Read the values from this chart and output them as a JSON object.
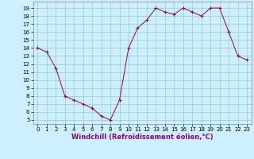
{
  "x": [
    0,
    1,
    2,
    3,
    4,
    5,
    6,
    7,
    8,
    9,
    10,
    11,
    12,
    13,
    14,
    15,
    16,
    17,
    18,
    19,
    20,
    21,
    22,
    23
  ],
  "y": [
    14,
    13.5,
    11.5,
    8,
    7.5,
    7,
    6.5,
    5.5,
    5,
    7.5,
    14,
    16.5,
    17.5,
    19,
    18.5,
    18.2,
    19,
    18.5,
    18,
    19,
    19,
    16,
    13,
    12.5
  ],
  "line_color": "#880088",
  "marker": "+",
  "bg_color": "#cceeff",
  "grid_color": "#99ccbb",
  "xlabel": "Windchill (Refroidissement éolien,°C)",
  "ylabel_ticks": [
    5,
    6,
    7,
    8,
    9,
    10,
    11,
    12,
    13,
    14,
    15,
    16,
    17,
    18,
    19
  ],
  "ylim": [
    4.5,
    19.8
  ],
  "xlim": [
    -0.5,
    23.5
  ],
  "xticks": [
    0,
    1,
    2,
    3,
    4,
    5,
    6,
    7,
    8,
    9,
    10,
    11,
    12,
    13,
    14,
    15,
    16,
    17,
    18,
    19,
    20,
    21,
    22,
    23
  ],
  "tick_fontsize": 5.0,
  "xlabel_fontsize": 6.0
}
